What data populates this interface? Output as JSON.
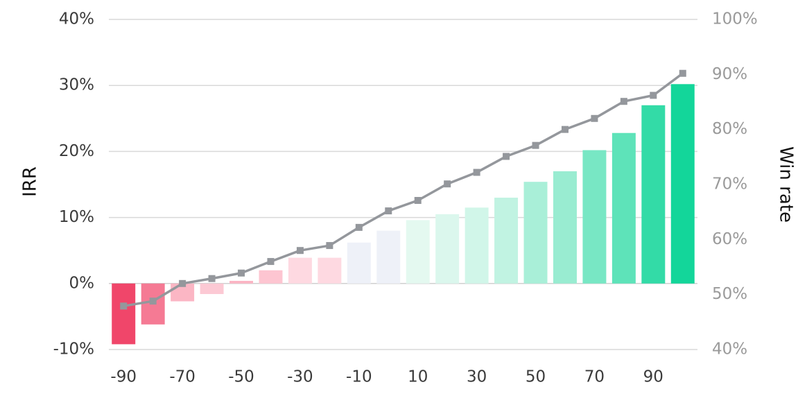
{
  "chart_data": {
    "type": "bar",
    "x": [
      -90,
      -80,
      -70,
      -60,
      -50,
      -40,
      -30,
      -20,
      -10,
      0,
      10,
      20,
      30,
      40,
      50,
      60,
      70,
      80,
      90,
      100
    ],
    "x_tick_labels": [
      "-90",
      "-70",
      "-50",
      "-30",
      "-10",
      "10",
      "30",
      "50",
      "70",
      "90"
    ],
    "series": [
      {
        "axis": "left",
        "kind": "bar",
        "values": [
          -9.2,
          -6.2,
          -2.7,
          -1.6,
          0.4,
          2.0,
          3.9,
          3.9,
          6.2,
          8.0,
          9.6,
          10.5,
          11.5,
          13.0,
          15.4,
          17.0,
          20.2,
          22.8,
          27.0,
          30.2
        ]
      },
      {
        "axis": "right",
        "kind": "line",
        "color": "#94979c",
        "values": [
          47.9,
          48.8,
          52.0,
          52.9,
          53.9,
          56.0,
          58.0,
          58.9,
          62.2,
          65.2,
          67.1,
          70.1,
          72.2,
          75.1,
          77.1,
          80.0,
          82.0,
          85.1,
          86.2,
          90.2
        ]
      }
    ],
    "left_axis": {
      "label": "IRR",
      "ylim": [
        -10,
        40
      ],
      "ticks": [
        "-10%",
        "0%",
        "10%",
        "20%",
        "30%",
        "40%"
      ]
    },
    "right_axis": {
      "label": "Win rate",
      "ylim": [
        40,
        100
      ],
      "ticks": [
        "40%",
        "50%",
        "60%",
        "70%",
        "80%",
        "90%",
        "100%"
      ]
    },
    "colors": {
      "negative": "#f0466a",
      "positive": "#13d69a",
      "neutral": "#eef1f8",
      "line": "#94979c"
    },
    "grid": true
  }
}
